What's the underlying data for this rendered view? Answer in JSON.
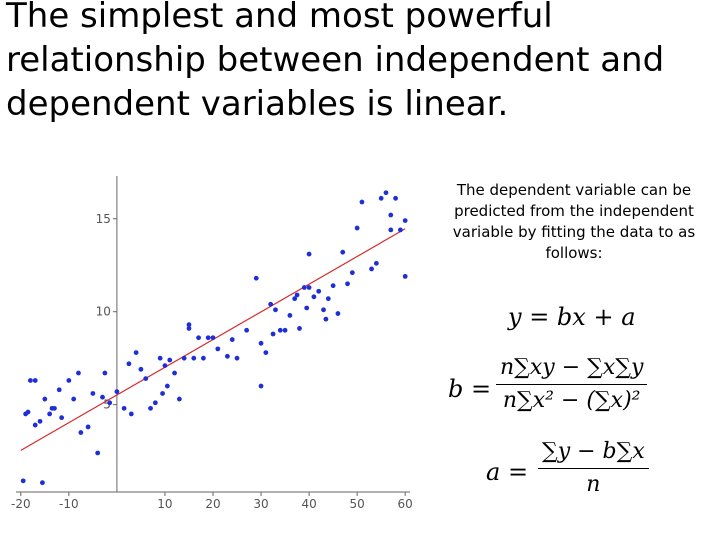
{
  "slide": {
    "title": "The simplest and most powerful relationship between independent and dependent variables is linear.",
    "description": "The dependent variable can be predicted from the independent variable by fitting the data to as follows:"
  },
  "formulas": {
    "line": "y = bx + a",
    "b_lhs": "b =",
    "b_num": "n∑xy − ∑x∑y",
    "b_den": "n∑x² − (∑x)²",
    "a_lhs": "a =",
    "a_num": "∑y − b∑x",
    "a_den": "n"
  },
  "colors": {
    "points": "#1f2fd6",
    "fit_line": "#d62b2b",
    "axis": "#666666"
  },
  "chart_data": {
    "type": "scatter",
    "x_ticks": [
      "-20",
      "-10",
      "10",
      "20",
      "30",
      "40",
      "50",
      "60"
    ],
    "y_ticks": [
      "5",
      "10",
      "15"
    ],
    "xlim": [
      -21,
      61
    ],
    "ylim": [
      0.3,
      17.3
    ],
    "grid": false,
    "points": [
      [
        -19.5,
        0.9
      ],
      [
        -19,
        4.5
      ],
      [
        -18.5,
        4.6
      ],
      [
        -18,
        6.3
      ],
      [
        -17,
        6.3
      ],
      [
        -17,
        3.9
      ],
      [
        -16,
        4.1
      ],
      [
        -15.5,
        0.8
      ],
      [
        -15,
        5.3
      ],
      [
        -14,
        4.5
      ],
      [
        -13.5,
        4.8
      ],
      [
        -13,
        4.8
      ],
      [
        -12,
        5.8
      ],
      [
        -11.5,
        4.3
      ],
      [
        -10,
        6.3
      ],
      [
        -9,
        5.3
      ],
      [
        -8,
        6.7
      ],
      [
        -7.5,
        3.5
      ],
      [
        -6,
        3.8
      ],
      [
        -5,
        5.6
      ],
      [
        -4,
        2.4
      ],
      [
        -3,
        5.4
      ],
      [
        -2.5,
        6.7
      ],
      [
        -1.5,
        5.1
      ],
      [
        0,
        5.7
      ],
      [
        1.5,
        4.8
      ],
      [
        2.5,
        7.2
      ],
      [
        3,
        4.5
      ],
      [
        4,
        7.8
      ],
      [
        5,
        6.9
      ],
      [
        6,
        6.4
      ],
      [
        7,
        4.8
      ],
      [
        8,
        5.1
      ],
      [
        9,
        7.5
      ],
      [
        9.5,
        5.6
      ],
      [
        10,
        7.1
      ],
      [
        10.5,
        6.0
      ],
      [
        11,
        7.4
      ],
      [
        12,
        6.7
      ],
      [
        13,
        5.3
      ],
      [
        14,
        7.5
      ],
      [
        15,
        9.3
      ],
      [
        15,
        9.1
      ],
      [
        16,
        7.5
      ],
      [
        17,
        8.6
      ],
      [
        18,
        7.5
      ],
      [
        19,
        8.6
      ],
      [
        20,
        8.6
      ],
      [
        21,
        8.0
      ],
      [
        23,
        7.6
      ],
      [
        24,
        8.5
      ],
      [
        25,
        7.5
      ],
      [
        27,
        9.0
      ],
      [
        29,
        11.8
      ],
      [
        30,
        6.0
      ],
      [
        30,
        8.3
      ],
      [
        31,
        7.8
      ],
      [
        32,
        10.4
      ],
      [
        32.5,
        8.8
      ],
      [
        33,
        10.1
      ],
      [
        34,
        9.0
      ],
      [
        35,
        9.0
      ],
      [
        36,
        9.8
      ],
      [
        37,
        10.7
      ],
      [
        37.5,
        10.9
      ],
      [
        38,
        9.1
      ],
      [
        39,
        11.3
      ],
      [
        39.5,
        10.2
      ],
      [
        40,
        13.1
      ],
      [
        40,
        11.3
      ],
      [
        41,
        10.8
      ],
      [
        42,
        11.1
      ],
      [
        43,
        10.1
      ],
      [
        43.5,
        9.6
      ],
      [
        44,
        10.7
      ],
      [
        45,
        11.4
      ],
      [
        46,
        9.9
      ],
      [
        47,
        13.2
      ],
      [
        48,
        11.5
      ],
      [
        49,
        12.1
      ],
      [
        50,
        14.5
      ],
      [
        51,
        15.9
      ],
      [
        53,
        12.3
      ],
      [
        54,
        12.6
      ],
      [
        55,
        16.1
      ],
      [
        56,
        16.4
      ],
      [
        57,
        14.4
      ],
      [
        57,
        15.2
      ],
      [
        58,
        16.1
      ],
      [
        59,
        14.4
      ],
      [
        60,
        11.9
      ],
      [
        60,
        14.9
      ]
    ],
    "fit_line": {
      "slope": 0.149,
      "intercept": 5.52,
      "x_range": [
        -20,
        60
      ]
    }
  }
}
